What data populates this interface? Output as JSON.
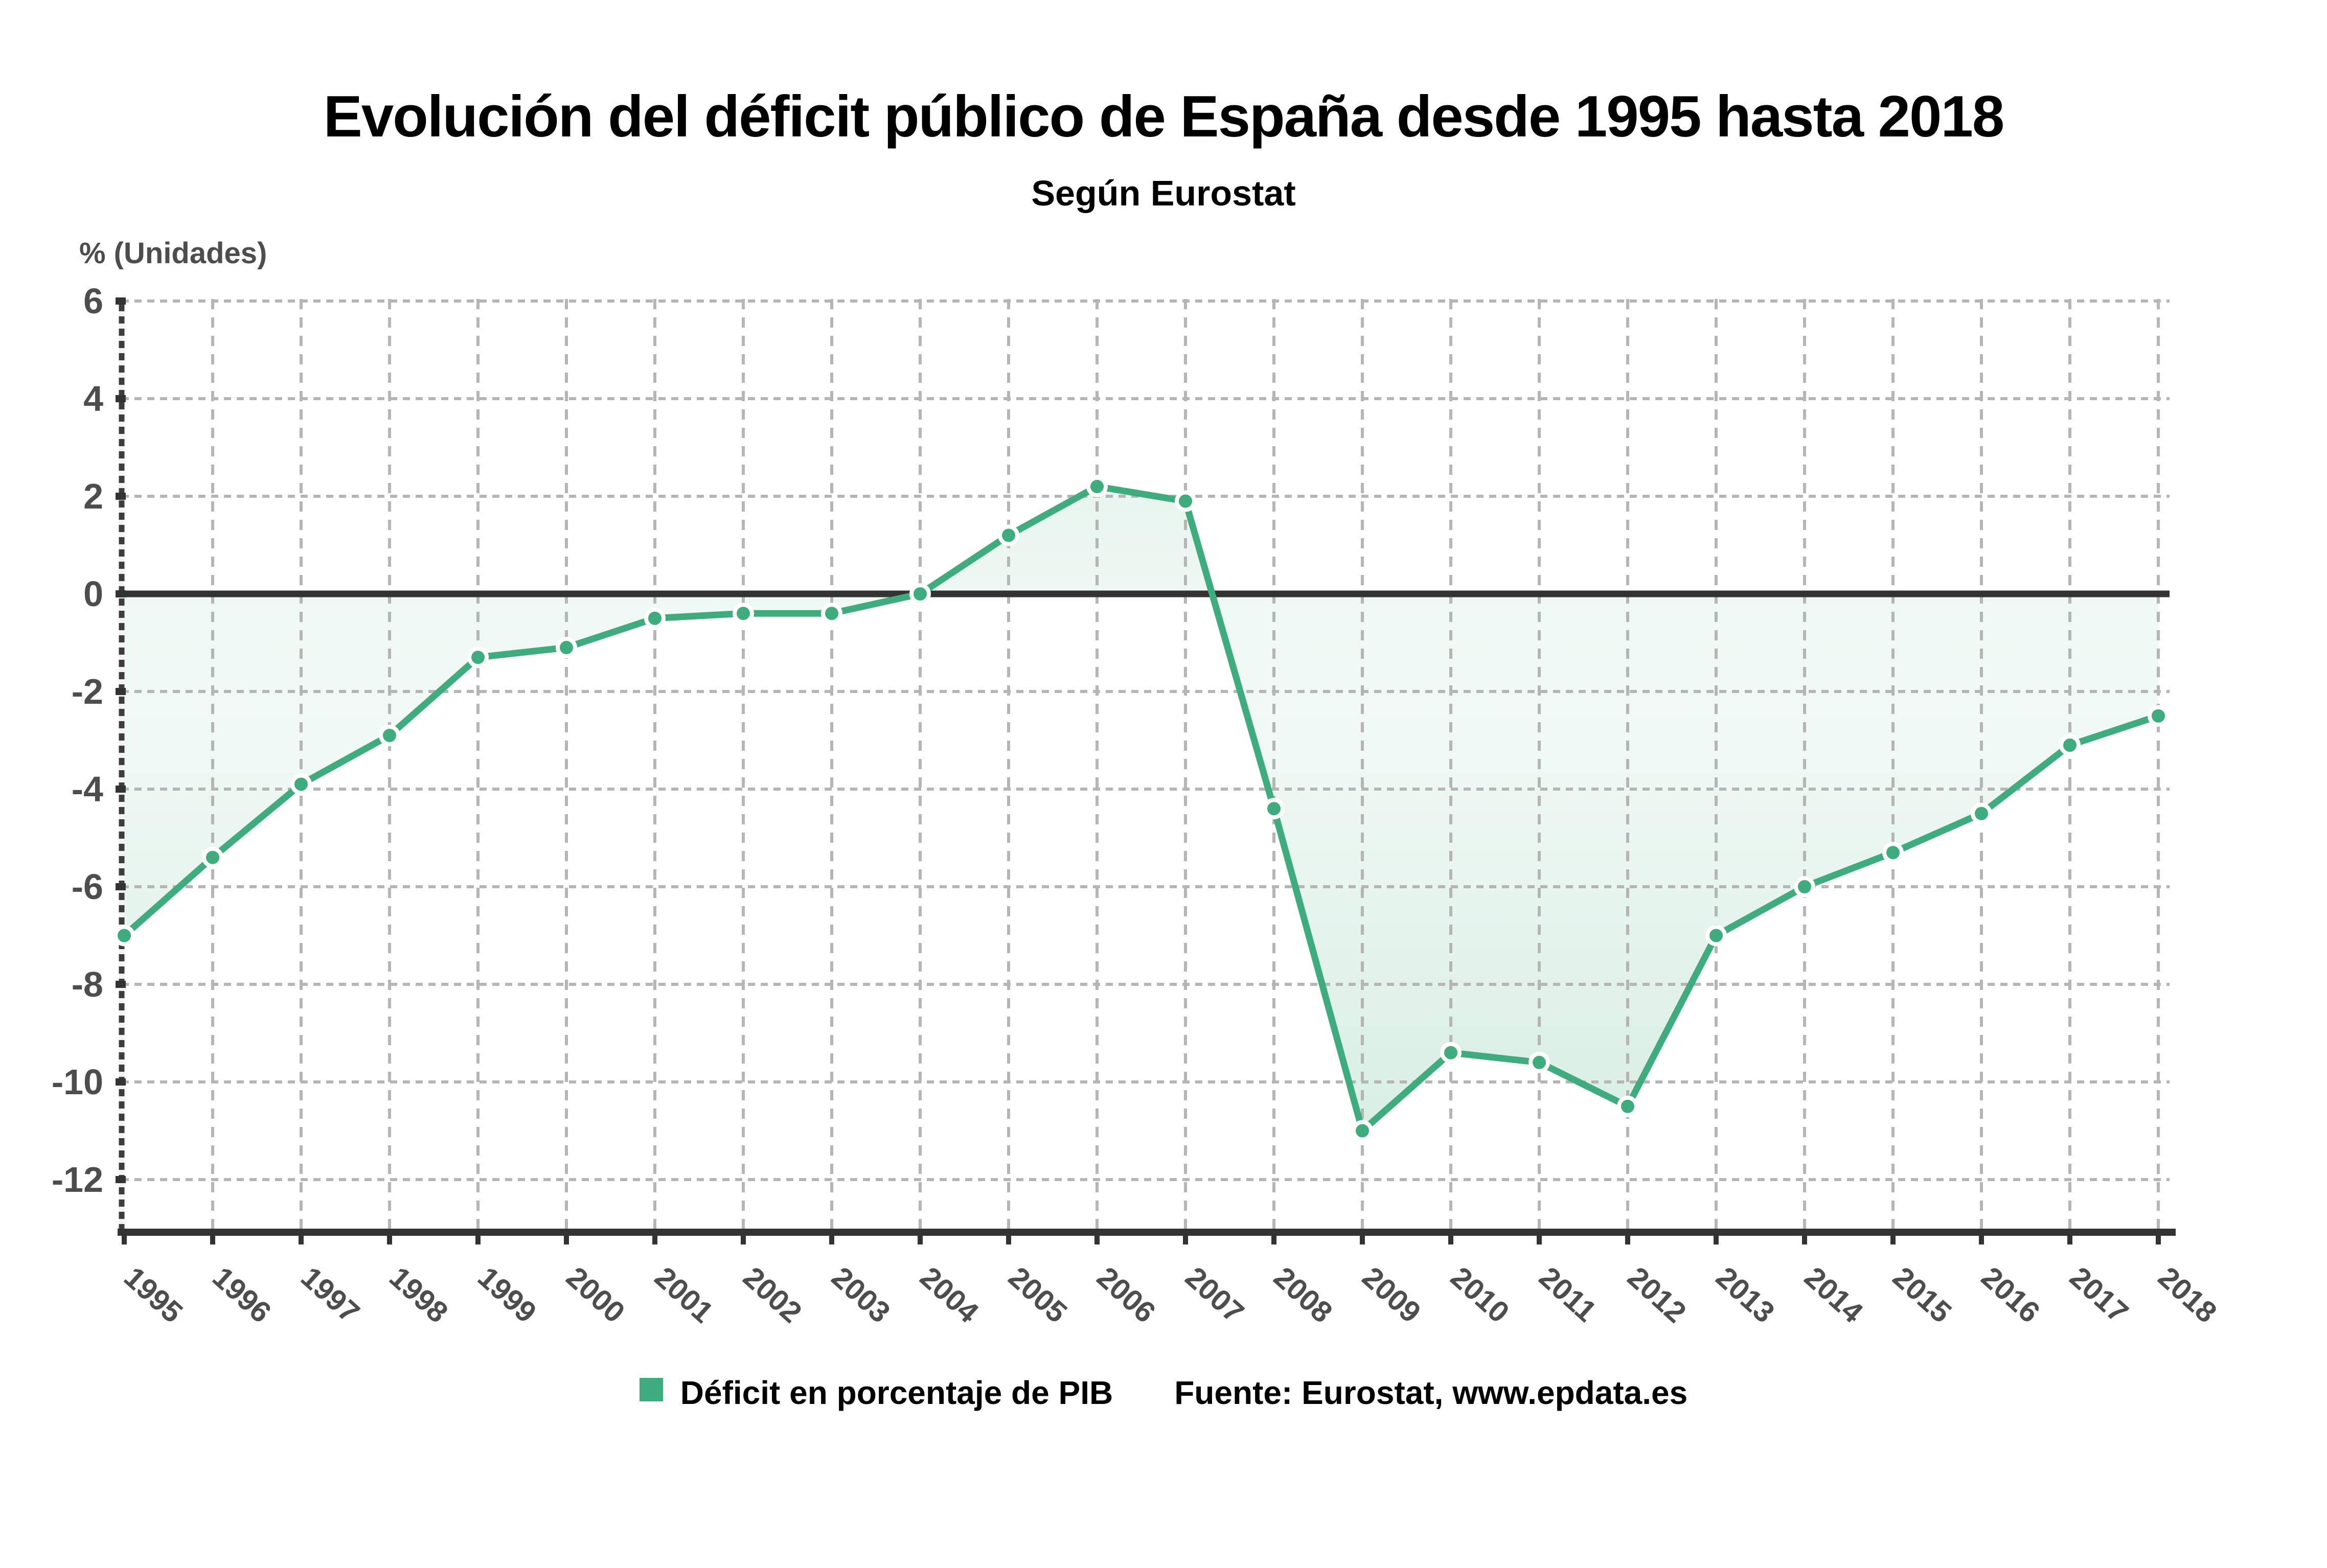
{
  "header": {
    "title": "Evolución del déficit público de España desde 1995 hasta 2018",
    "subtitle": "Según Eurostat"
  },
  "chart_data": {
    "type": "area",
    "title": "Evolución del déficit público de España desde 1995 hasta 2018",
    "subtitle": "Según Eurostat",
    "xlabel": "",
    "ylabel": "% (Unidades)",
    "categories": [
      "1995",
      "1996",
      "1997",
      "1998",
      "1999",
      "2000",
      "2001",
      "2002",
      "2003",
      "2004",
      "2005",
      "2006",
      "2007",
      "2008",
      "2009",
      "2010",
      "2011",
      "2012",
      "2013",
      "2014",
      "2015",
      "2016",
      "2017",
      "2018"
    ],
    "series": [
      {
        "name": "Déficit en porcentaje de PIB",
        "values": [
          -7.0,
          -5.4,
          -3.9,
          -2.9,
          -1.3,
          -1.1,
          -0.5,
          -0.4,
          -0.4,
          0.0,
          1.2,
          2.2,
          1.9,
          -4.4,
          -11.0,
          -9.4,
          -9.6,
          -10.5,
          -7.0,
          -6.0,
          -5.3,
          -4.5,
          -3.1,
          -2.5
        ]
      }
    ],
    "ylim": [
      -13.1,
      6
    ],
    "yticks": [
      6,
      4,
      2,
      0,
      -2,
      -4,
      -6,
      -8,
      -10,
      -12
    ],
    "grid": true,
    "zero_baseline": true,
    "legend_position": "bottom"
  },
  "legend": {
    "label": "Déficit en porcentaje de PIB",
    "source": "Fuente: Eurostat, www.epdata.es"
  },
  "colors": {
    "accent_green": "#3EAC7D",
    "grid_gray": "#b5b5b5",
    "zero_line": "#333333",
    "axis_dark": "#3d3d3d",
    "tick_text": "#4d4d4d",
    "marker_ring": "#ffffff"
  }
}
